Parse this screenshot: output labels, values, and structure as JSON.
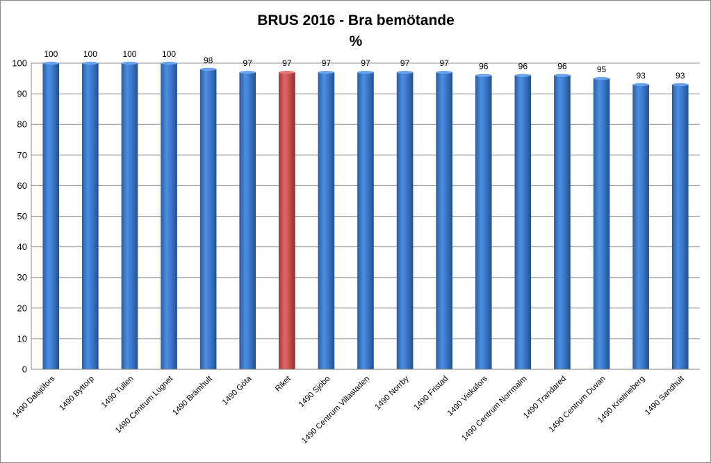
{
  "chart_data": {
    "type": "bar",
    "title": "BRUS 2016 - Bra bemötande",
    "subtitle": "%",
    "xlabel": "",
    "ylabel": "",
    "ylim": [
      0,
      100
    ],
    "yticks": [
      0,
      10,
      20,
      30,
      40,
      50,
      60,
      70,
      80,
      90,
      100
    ],
    "grid": true,
    "legend": "none",
    "categories": [
      "1490 Dalsjöfors",
      "1490 Byttorp",
      "1490 Tullen",
      "1490 Centrum Lugnet",
      "1490 Brämhult",
      "1490 Göta",
      "Riket",
      "1490 Sjöbo",
      "1490 Centrum Villastaden",
      "1490 Norrby",
      "1490 Fristad",
      "1490 Viskafors",
      "1490 Centrum Norrmalm",
      "1490 Trandared",
      "1490 Centrum Duvan",
      "1490 Kristineberg",
      "1490 Sandhult"
    ],
    "values": [
      100,
      100,
      100,
      100,
      98,
      97,
      97,
      97,
      97,
      97,
      97,
      96,
      96,
      96,
      95,
      93,
      93
    ],
    "data_labels": [
      "100",
      "100",
      "100",
      "100",
      "98",
      "97",
      "97",
      "97",
      "97",
      "97",
      "97",
      "96",
      "96",
      "96",
      "95",
      "93",
      "93"
    ],
    "colors": {
      "default_bar": "#3d78c8",
      "highlight_bar": "#c9504f",
      "gridline": "#8c8c8c"
    },
    "highlight_category": "Riket"
  }
}
